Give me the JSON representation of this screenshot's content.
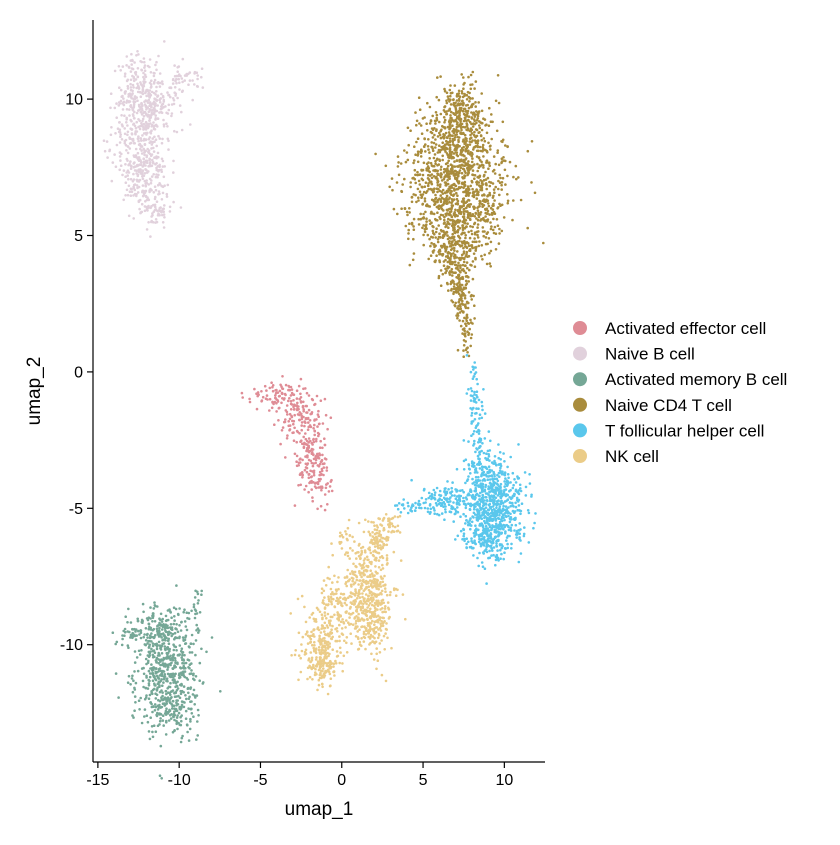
{
  "chart_data": {
    "type": "scatter",
    "title": "",
    "xlabel": "umap_1",
    "ylabel": "umap_2",
    "xlim": [
      -15.3,
      12.5
    ],
    "ylim": [
      -14.3,
      12.9
    ],
    "x_ticks": [
      -15,
      -10,
      -5,
      0,
      5,
      10
    ],
    "x_tick_labels": [
      "-15",
      "-10",
      "-5",
      "0",
      "5",
      "10"
    ],
    "y_ticks": [
      -10,
      -5,
      0,
      5,
      10
    ],
    "y_tick_labels": [
      "-10",
      "-5",
      "0",
      "5",
      "10"
    ],
    "grid": false,
    "legend_position": "right",
    "series": [
      {
        "name": "Activated effector cell",
        "color": "#df8c95",
        "clusters": [
          {
            "cx": -4.2,
            "cy": -0.9,
            "sx": 0.9,
            "sy": 0.3,
            "n": 70
          },
          {
            "cx": -2.5,
            "cy": -1.6,
            "sx": 0.7,
            "sy": 0.5,
            "n": 110
          },
          {
            "cx": -1.9,
            "cy": -2.8,
            "sx": 0.5,
            "sy": 0.7,
            "n": 110
          },
          {
            "cx": -2.2,
            "cy": -3.6,
            "sx": 0.4,
            "sy": 0.4,
            "n": 50
          },
          {
            "cx": -1.3,
            "cy": -4.0,
            "sx": 0.4,
            "sy": 0.5,
            "n": 40
          }
        ]
      },
      {
        "name": "Naive B cell",
        "color": "#e1d1dc",
        "clusters": [
          {
            "cx": -12.4,
            "cy": 11.0,
            "sx": 0.6,
            "sy": 0.4,
            "n": 60
          },
          {
            "cx": -12.0,
            "cy": 10.0,
            "sx": 1.0,
            "sy": 0.5,
            "n": 230
          },
          {
            "cx": -12.3,
            "cy": 8.6,
            "sx": 0.8,
            "sy": 0.8,
            "n": 280
          },
          {
            "cx": -12.2,
            "cy": 7.2,
            "sx": 0.6,
            "sy": 0.6,
            "n": 150
          },
          {
            "cx": -11.6,
            "cy": 6.0,
            "sx": 0.6,
            "sy": 0.4,
            "n": 70
          },
          {
            "cx": -9.8,
            "cy": 10.8,
            "sx": 0.6,
            "sy": 0.3,
            "n": 40
          }
        ]
      },
      {
        "name": "Activated memory B cell",
        "color": "#75a796",
        "clusters": [
          {
            "cx": -10.8,
            "cy": -10.8,
            "sx": 1.0,
            "sy": 1.0,
            "n": 480
          },
          {
            "cx": -10.5,
            "cy": -12.3,
            "sx": 0.8,
            "sy": 0.5,
            "n": 150
          },
          {
            "cx": -11.2,
            "cy": -9.3,
            "sx": 0.8,
            "sy": 0.4,
            "n": 110
          },
          {
            "cx": -12.8,
            "cy": -9.6,
            "sx": 0.5,
            "sy": 0.3,
            "n": 35
          },
          {
            "cx": -9.0,
            "cy": -8.7,
            "sx": 0.2,
            "sy": 0.4,
            "n": 20
          }
        ]
      },
      {
        "name": "Naive CD4 T cell",
        "color": "#a98c3c",
        "clusters": [
          {
            "cx": 7.0,
            "cy": 6.6,
            "sx": 1.6,
            "sy": 1.0,
            "n": 850
          },
          {
            "cx": 7.1,
            "cy": 8.6,
            "sx": 1.1,
            "sy": 0.8,
            "n": 420
          },
          {
            "cx": 7.5,
            "cy": 9.8,
            "sx": 0.5,
            "sy": 0.4,
            "n": 90
          },
          {
            "cx": 6.9,
            "cy": 4.6,
            "sx": 0.8,
            "sy": 0.6,
            "n": 240
          },
          {
            "cx": 7.3,
            "cy": 3.0,
            "sx": 0.35,
            "sy": 0.55,
            "n": 130
          },
          {
            "cx": 7.7,
            "cy": 1.6,
            "sx": 0.2,
            "sy": 0.5,
            "n": 50
          },
          {
            "cx": 9.2,
            "cy": 5.8,
            "sx": 0.3,
            "sy": 0.8,
            "n": 40
          }
        ]
      },
      {
        "name": "T follicular helper cell",
        "color": "#5ac7ec",
        "clusters": [
          {
            "cx": 9.3,
            "cy": -4.9,
            "sx": 1.0,
            "sy": 0.8,
            "n": 650
          },
          {
            "cx": 9.0,
            "cy": -6.2,
            "sx": 0.7,
            "sy": 0.4,
            "n": 130
          },
          {
            "cx": 8.7,
            "cy": -3.6,
            "sx": 0.5,
            "sy": 0.4,
            "n": 90
          },
          {
            "cx": 8.3,
            "cy": -2.2,
            "sx": 0.25,
            "sy": 0.7,
            "n": 60
          },
          {
            "cx": 8.1,
            "cy": -0.7,
            "sx": 0.15,
            "sy": 0.6,
            "n": 30
          },
          {
            "cx": 6.2,
            "cy": -4.7,
            "sx": 0.8,
            "sy": 0.3,
            "n": 120
          },
          {
            "cx": 4.2,
            "cy": -4.9,
            "sx": 0.5,
            "sy": 0.15,
            "n": 30
          }
        ]
      },
      {
        "name": "NK cell",
        "color": "#ebcc88",
        "clusters": [
          {
            "cx": 1.6,
            "cy": -8.0,
            "sx": 0.8,
            "sy": 0.9,
            "n": 380
          },
          {
            "cx": -0.4,
            "cy": -8.7,
            "sx": 0.8,
            "sy": 0.6,
            "n": 150
          },
          {
            "cx": -1.3,
            "cy": -10.2,
            "sx": 0.6,
            "sy": 0.5,
            "n": 200
          },
          {
            "cx": -1.0,
            "cy": -11.0,
            "sx": 0.5,
            "sy": 0.3,
            "n": 50
          },
          {
            "cx": 1.9,
            "cy": -9.3,
            "sx": 0.5,
            "sy": 0.5,
            "n": 110
          },
          {
            "cx": 2.2,
            "cy": -6.2,
            "sx": 0.45,
            "sy": 0.4,
            "n": 90
          },
          {
            "cx": 3.0,
            "cy": -5.5,
            "sx": 0.3,
            "sy": 0.2,
            "n": 30
          },
          {
            "cx": 0.1,
            "cy": -6.2,
            "sx": 0.3,
            "sy": 0.3,
            "n": 20
          }
        ]
      }
    ]
  }
}
